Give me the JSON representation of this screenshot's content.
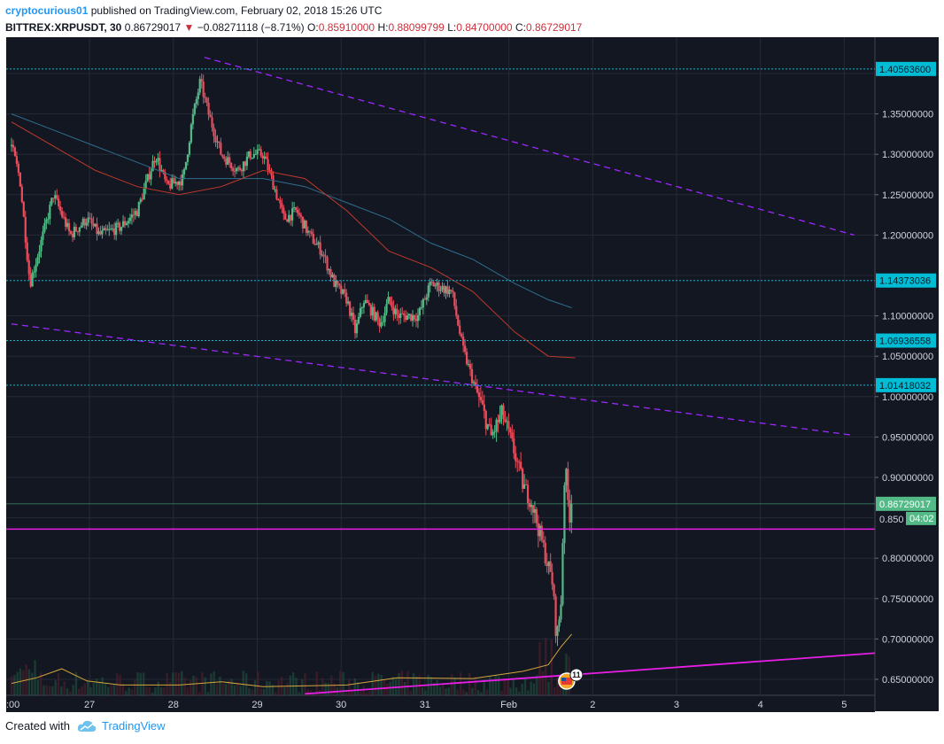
{
  "header": {
    "author": "cryptocurious01",
    "published_text": "published on TradingView.com, February 02, 2018 15:26 UTC",
    "symbol": "BITTREX:XRPUSDT, 30",
    "last": "0.86729017",
    "change": "−0.08271118 (−8.71%)",
    "o_label": "O:",
    "o": "0.85910000",
    "h_label": "H:",
    "h": "0.88099799",
    "l_label": "L:",
    "l": "0.84700000",
    "c_label": "C:",
    "c": "0.86729017"
  },
  "footer": {
    "created_with": "Created with",
    "brand": "TradingView"
  },
  "colors": {
    "background": "#131722",
    "grid": "#252a36",
    "up": "#53b987",
    "down": "#eb4d5c",
    "ma_fast": "#c0392b",
    "ma_slow": "#2f6e8f",
    "horizontal_levels": "#00bcd4",
    "trend_dashed": "#9c27ff",
    "trend_solid": "#e91ee6",
    "volume_ma": "#d4a53a"
  },
  "chart_data": {
    "type": "candlestick",
    "symbol": "BITTREX:XRPUSDT",
    "interval": "30",
    "x_ticks": [
      ":00",
      "27",
      "28",
      "29",
      "30",
      "31",
      "Feb",
      "2",
      "3",
      "4",
      "5"
    ],
    "y_ticks": [
      "1.35000000",
      "1.30000000",
      "1.25000000",
      "1.20000000",
      "1.10000000",
      "1.05000000",
      "1.00000000",
      "0.95000000",
      "0.90000000",
      "0.80000000",
      "0.75000000",
      "0.70000000",
      "0.65000000"
    ],
    "ylim": [
      0.63,
      1.42
    ],
    "price_path": [
      {
        "t": 0.0,
        "p": 1.31
      },
      {
        "t": 0.1,
        "p": 1.27
      },
      {
        "t": 0.22,
        "p": 1.14
      },
      {
        "t": 0.35,
        "p": 1.19
      },
      {
        "t": 0.5,
        "p": 1.25
      },
      {
        "t": 0.7,
        "p": 1.2
      },
      {
        "t": 0.9,
        "p": 1.22
      },
      {
        "t": 1.05,
        "p": 1.2
      },
      {
        "t": 1.3,
        "p": 1.21
      },
      {
        "t": 1.5,
        "p": 1.23
      },
      {
        "t": 1.72,
        "p": 1.3
      },
      {
        "t": 1.85,
        "p": 1.26
      },
      {
        "t": 2.05,
        "p": 1.27
      },
      {
        "t": 2.15,
        "p": 1.34
      },
      {
        "t": 2.25,
        "p": 1.39
      },
      {
        "t": 2.35,
        "p": 1.35
      },
      {
        "t": 2.5,
        "p": 1.3
      },
      {
        "t": 2.7,
        "p": 1.28
      },
      {
        "t": 2.85,
        "p": 1.3
      },
      {
        "t": 3.0,
        "p": 1.3
      },
      {
        "t": 3.1,
        "p": 1.27
      },
      {
        "t": 3.25,
        "p": 1.22
      },
      {
        "t": 3.4,
        "p": 1.23
      },
      {
        "t": 3.55,
        "p": 1.2
      },
      {
        "t": 3.7,
        "p": 1.18
      },
      {
        "t": 3.85,
        "p": 1.14
      },
      {
        "t": 4.0,
        "p": 1.12
      },
      {
        "t": 4.1,
        "p": 1.08
      },
      {
        "t": 4.2,
        "p": 1.12
      },
      {
        "t": 4.4,
        "p": 1.09
      },
      {
        "t": 4.5,
        "p": 1.12
      },
      {
        "t": 4.6,
        "p": 1.1
      },
      {
        "t": 4.85,
        "p": 1.1
      },
      {
        "t": 5.0,
        "p": 1.14
      },
      {
        "t": 5.25,
        "p": 1.13
      },
      {
        "t": 5.38,
        "p": 1.06
      },
      {
        "t": 5.5,
        "p": 1.02
      },
      {
        "t": 5.6,
        "p": 0.99
      },
      {
        "t": 5.72,
        "p": 0.95
      },
      {
        "t": 5.85,
        "p": 0.98
      },
      {
        "t": 6.0,
        "p": 0.93
      },
      {
        "t": 6.1,
        "p": 0.89
      },
      {
        "t": 6.2,
        "p": 0.87
      },
      {
        "t": 6.3,
        "p": 0.83
      },
      {
        "t": 6.4,
        "p": 0.79
      },
      {
        "t": 6.45,
        "p": 0.77
      },
      {
        "t": 6.5,
        "p": 0.7
      },
      {
        "t": 6.55,
        "p": 0.74
      },
      {
        "t": 6.6,
        "p": 0.92
      },
      {
        "t": 6.65,
        "p": 0.85
      },
      {
        "t": 6.68,
        "p": 0.867
      }
    ],
    "ma_fast": [
      {
        "t": 0.0,
        "p": 1.34
      },
      {
        "t": 0.5,
        "p": 1.31
      },
      {
        "t": 1.0,
        "p": 1.28
      },
      {
        "t": 1.5,
        "p": 1.26
      },
      {
        "t": 2.0,
        "p": 1.25
      },
      {
        "t": 2.5,
        "p": 1.26
      },
      {
        "t": 3.0,
        "p": 1.28
      },
      {
        "t": 3.5,
        "p": 1.27
      },
      {
        "t": 4.0,
        "p": 1.23
      },
      {
        "t": 4.5,
        "p": 1.18
      },
      {
        "t": 5.0,
        "p": 1.16
      },
      {
        "t": 5.5,
        "p": 1.13
      },
      {
        "t": 6.0,
        "p": 1.08
      },
      {
        "t": 6.4,
        "p": 1.05
      },
      {
        "t": 6.72,
        "p": 1.048
      }
    ],
    "ma_slow": [
      {
        "t": 0.0,
        "p": 1.35
      },
      {
        "t": 0.5,
        "p": 1.33
      },
      {
        "t": 1.0,
        "p": 1.31
      },
      {
        "t": 1.5,
        "p": 1.29
      },
      {
        "t": 2.0,
        "p": 1.27
      },
      {
        "t": 2.5,
        "p": 1.27
      },
      {
        "t": 3.0,
        "p": 1.27
      },
      {
        "t": 3.5,
        "p": 1.26
      },
      {
        "t": 4.0,
        "p": 1.24
      },
      {
        "t": 4.5,
        "p": 1.22
      },
      {
        "t": 5.0,
        "p": 1.19
      },
      {
        "t": 5.5,
        "p": 1.17
      },
      {
        "t": 6.0,
        "p": 1.14
      },
      {
        "t": 6.4,
        "p": 1.12
      },
      {
        "t": 6.68,
        "p": 1.11
      }
    ],
    "horizontal_levels": [
      {
        "price": 1.405636,
        "label": "1.40563600"
      },
      {
        "price": 1.14373036,
        "label": "1.14373036"
      },
      {
        "price": 1.06936558,
        "label": "1.06936558"
      },
      {
        "price": 1.01418032,
        "label": "1.01418032"
      }
    ],
    "support_line": {
      "price": 0.836
    },
    "last_price": {
      "price": 0.86729017,
      "label": "0.86729017",
      "countdown": "04:02",
      "partial_tick": "0.850"
    },
    "trend_dashed_upper": [
      {
        "t": 2.3,
        "p": 1.42
      },
      {
        "t": 10.05,
        "p": 1.2
      }
    ],
    "trend_dashed_lower": [
      {
        "t": 0.0,
        "p": 1.09
      },
      {
        "t": 10.05,
        "p": 0.952
      }
    ],
    "trend_solid": [
      {
        "t": 3.5,
        "p": 0.632
      },
      {
        "t": 10.5,
        "p": 0.684
      }
    ],
    "volume_ma": [
      {
        "t": 0.0,
        "p": 0.645
      },
      {
        "t": 0.3,
        "p": 0.652
      },
      {
        "t": 0.6,
        "p": 0.663
      },
      {
        "t": 0.9,
        "p": 0.648
      },
      {
        "t": 1.3,
        "p": 0.643
      },
      {
        "t": 2.0,
        "p": 0.643
      },
      {
        "t": 2.5,
        "p": 0.647
      },
      {
        "t": 3.0,
        "p": 0.641
      },
      {
        "t": 4.0,
        "p": 0.643
      },
      {
        "t": 4.6,
        "p": 0.652
      },
      {
        "t": 5.5,
        "p": 0.651
      },
      {
        "t": 6.1,
        "p": 0.66
      },
      {
        "t": 6.4,
        "p": 0.668
      },
      {
        "t": 6.55,
        "p": 0.69
      },
      {
        "t": 6.68,
        "p": 0.706
      }
    ],
    "events_badge": {
      "t": 6.62,
      "count": "11"
    }
  }
}
